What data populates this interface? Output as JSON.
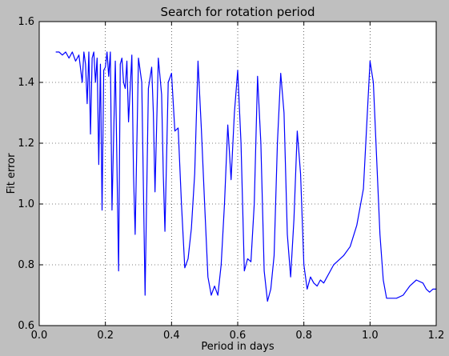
{
  "chart_data": {
    "type": "line",
    "title": "Search for rotation period",
    "xlabel": "Period in days",
    "ylabel": "Fit error",
    "xlim": [
      0.0,
      1.2
    ],
    "ylim": [
      0.6,
      1.6
    ],
    "xticks": [
      "0.0",
      "0.2",
      "0.4",
      "0.6",
      "0.8",
      "1.0",
      "1.2"
    ],
    "yticks": [
      "0.6",
      "0.8",
      "1.0",
      "1.2",
      "1.4",
      "1.6"
    ],
    "grid": true,
    "grid_style": "dotted",
    "series": [
      {
        "color": "#0000ff",
        "x": [
          0.05,
          0.06,
          0.07,
          0.08,
          0.09,
          0.1,
          0.11,
          0.12,
          0.13,
          0.135,
          0.14,
          0.145,
          0.15,
          0.155,
          0.16,
          0.165,
          0.17,
          0.175,
          0.18,
          0.185,
          0.19,
          0.195,
          0.2,
          0.205,
          0.21,
          0.215,
          0.22,
          0.23,
          0.24,
          0.245,
          0.25,
          0.255,
          0.26,
          0.265,
          0.27,
          0.28,
          0.285,
          0.29,
          0.3,
          0.31,
          0.315,
          0.32,
          0.33,
          0.34,
          0.345,
          0.35,
          0.36,
          0.37,
          0.375,
          0.38,
          0.39,
          0.4,
          0.41,
          0.42,
          0.43,
          0.44,
          0.45,
          0.46,
          0.47,
          0.48,
          0.49,
          0.5,
          0.51,
          0.52,
          0.53,
          0.54,
          0.55,
          0.56,
          0.57,
          0.58,
          0.59,
          0.6,
          0.61,
          0.62,
          0.63,
          0.64,
          0.65,
          0.66,
          0.67,
          0.68,
          0.69,
          0.7,
          0.71,
          0.72,
          0.73,
          0.74,
          0.75,
          0.76,
          0.77,
          0.78,
          0.79,
          0.8,
          0.81,
          0.82,
          0.83,
          0.84,
          0.85,
          0.86,
          0.87,
          0.88,
          0.89,
          0.9,
          0.92,
          0.94,
          0.96,
          0.98,
          1.0,
          1.01,
          1.02,
          1.03,
          1.04,
          1.05,
          1.06,
          1.08,
          1.1,
          1.12,
          1.14,
          1.16,
          1.17,
          1.18,
          1.19,
          1.2
        ],
        "y": [
          1.5,
          1.5,
          1.49,
          1.5,
          1.48,
          1.5,
          1.47,
          1.49,
          1.4,
          1.5,
          1.46,
          1.33,
          1.5,
          1.23,
          1.48,
          1.5,
          1.4,
          1.48,
          1.13,
          1.46,
          0.98,
          1.44,
          1.45,
          1.5,
          1.42,
          1.5,
          0.98,
          1.47,
          0.78,
          1.46,
          1.48,
          1.4,
          1.38,
          1.47,
          1.27,
          1.49,
          1.1,
          0.9,
          1.48,
          1.4,
          1.05,
          0.7,
          1.38,
          1.45,
          1.3,
          1.04,
          1.48,
          1.36,
          1.1,
          0.91,
          1.4,
          1.43,
          1.24,
          1.25,
          1.0,
          0.79,
          0.82,
          0.92,
          1.1,
          1.47,
          1.25,
          1.0,
          0.76,
          0.7,
          0.73,
          0.7,
          0.8,
          1.0,
          1.26,
          1.08,
          1.3,
          1.44,
          1.2,
          0.78,
          0.82,
          0.81,
          1.0,
          1.42,
          1.2,
          0.78,
          0.68,
          0.72,
          0.83,
          1.2,
          1.43,
          1.3,
          0.9,
          0.76,
          0.95,
          1.24,
          1.1,
          0.8,
          0.72,
          0.76,
          0.74,
          0.73,
          0.75,
          0.74,
          0.76,
          0.78,
          0.8,
          0.81,
          0.83,
          0.86,
          0.93,
          1.05,
          1.47,
          1.4,
          1.15,
          0.9,
          0.75,
          0.69,
          0.69,
          0.69,
          0.7,
          0.73,
          0.75,
          0.74,
          0.72,
          0.71,
          0.72,
          0.72
        ]
      }
    ]
  }
}
